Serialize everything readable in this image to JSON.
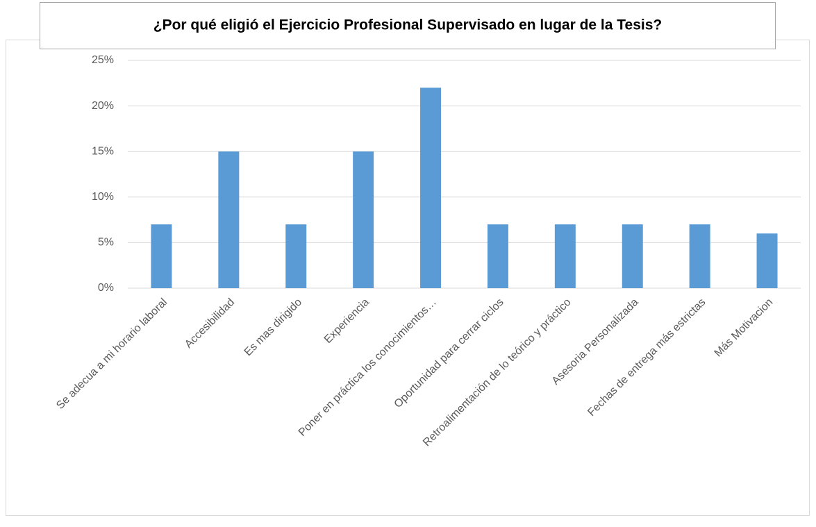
{
  "chart_data": {
    "type": "bar",
    "title": "¿Por qué eligió el Ejercicio Profesional Supervisado en lugar de la Tesis?",
    "categories": [
      "Se adecua a mi horario laboral",
      "Accesibilidad",
      "Es mas dirigido",
      "Experiencia",
      "Poner en práctica los conocimientos…",
      "Oportunidad para cerrar ciclos",
      "Retroalimentación de lo teórico y práctico",
      "Asesoria Personalizada",
      "Fechas de entrega más estrictas",
      "Más Motivacion"
    ],
    "values": [
      7,
      15,
      7,
      15,
      22,
      7,
      7,
      7,
      7,
      6
    ],
    "color": "#5b9bd5",
    "ylim": [
      0,
      25
    ],
    "yticks": [
      {
        "value": 0,
        "label": "0%"
      },
      {
        "value": 5,
        "label": "5%"
      },
      {
        "value": 10,
        "label": "10%"
      },
      {
        "value": 15,
        "label": "15%"
      },
      {
        "value": 20,
        "label": "20%"
      },
      {
        "value": 25,
        "label": "25%"
      }
    ],
    "grid": true
  }
}
